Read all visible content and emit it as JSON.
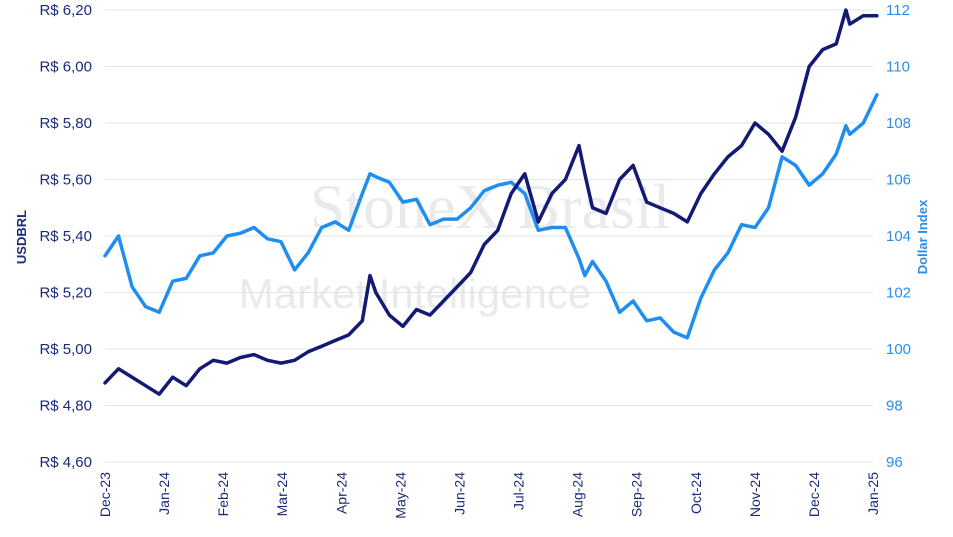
{
  "watermark": {
    "line1": "StoneX Brasil",
    "line2": "Market Intelligence"
  },
  "chart_data": {
    "type": "line",
    "title": "",
    "xlabel": "",
    "ylabel_left": "USDBRL",
    "ylabel_right": "Dollar Index",
    "y_left_range": [
      4.6,
      6.2
    ],
    "y_right_range": [
      96,
      112
    ],
    "y_left_ticks": [
      "R$ 4,60",
      "R$ 4,80",
      "R$ 5,00",
      "R$ 5,20",
      "R$ 5,40",
      "R$ 5,60",
      "R$ 5,80",
      "R$ 6,00",
      "R$ 6,20"
    ],
    "y_right_ticks": [
      "96",
      "98",
      "100",
      "102",
      "104",
      "106",
      "108",
      "110",
      "112"
    ],
    "x_ticks": [
      "Dec-23",
      "Jan-24",
      "Feb-24",
      "Mar-24",
      "Apr-24",
      "May-24",
      "Jun-24",
      "Jul-24",
      "Aug-24",
      "Sep-24",
      "Oct-24",
      "Nov-24",
      "Dec-24",
      "Jan-25"
    ],
    "grid": true,
    "legend": "none",
    "colors": {
      "usdbrl": "#121a73",
      "dxy": "#1e8ff0"
    },
    "series": [
      {
        "name": "USDBRL",
        "axis": "left",
        "x": [
          "2023-12-01",
          "2023-12-08",
          "2023-12-15",
          "2023-12-22",
          "2023-12-29",
          "2024-01-05",
          "2024-01-12",
          "2024-01-19",
          "2024-01-26",
          "2024-02-02",
          "2024-02-09",
          "2024-02-16",
          "2024-02-23",
          "2024-03-01",
          "2024-03-08",
          "2024-03-15",
          "2024-03-22",
          "2024-03-29",
          "2024-04-05",
          "2024-04-12",
          "2024-04-16",
          "2024-04-19",
          "2024-04-26",
          "2024-05-03",
          "2024-05-10",
          "2024-05-17",
          "2024-05-24",
          "2024-05-31",
          "2024-06-07",
          "2024-06-14",
          "2024-06-21",
          "2024-06-28",
          "2024-07-05",
          "2024-07-12",
          "2024-07-19",
          "2024-07-26",
          "2024-08-02",
          "2024-08-05",
          "2024-08-09",
          "2024-08-16",
          "2024-08-23",
          "2024-08-30",
          "2024-09-06",
          "2024-09-13",
          "2024-09-20",
          "2024-09-27",
          "2024-10-04",
          "2024-10-11",
          "2024-10-18",
          "2024-10-25",
          "2024-11-01",
          "2024-11-08",
          "2024-11-15",
          "2024-11-22",
          "2024-11-29",
          "2024-12-06",
          "2024-12-13",
          "2024-12-18",
          "2024-12-20",
          "2024-12-27",
          "2025-01-03"
        ],
        "values": [
          4.88,
          4.93,
          4.9,
          4.87,
          4.84,
          4.9,
          4.87,
          4.93,
          4.96,
          4.95,
          4.97,
          4.98,
          4.96,
          4.95,
          4.96,
          4.99,
          5.01,
          5.03,
          5.05,
          5.1,
          5.26,
          5.2,
          5.12,
          5.08,
          5.14,
          5.12,
          5.17,
          5.22,
          5.27,
          5.37,
          5.42,
          5.55,
          5.62,
          5.45,
          5.55,
          5.6,
          5.72,
          5.62,
          5.5,
          5.48,
          5.6,
          5.65,
          5.52,
          5.5,
          5.48,
          5.45,
          5.55,
          5.62,
          5.68,
          5.72,
          5.8,
          5.76,
          5.7,
          5.82,
          6.0,
          6.06,
          6.08,
          6.2,
          6.15,
          6.18,
          6.18
        ]
      },
      {
        "name": "Dollar Index",
        "axis": "right",
        "x": [
          "2023-12-01",
          "2023-12-08",
          "2023-12-15",
          "2023-12-22",
          "2023-12-29",
          "2024-01-05",
          "2024-01-12",
          "2024-01-19",
          "2024-01-26",
          "2024-02-02",
          "2024-02-09",
          "2024-02-16",
          "2024-02-23",
          "2024-03-01",
          "2024-03-08",
          "2024-03-15",
          "2024-03-22",
          "2024-03-29",
          "2024-04-05",
          "2024-04-12",
          "2024-04-16",
          "2024-04-19",
          "2024-04-26",
          "2024-05-03",
          "2024-05-10",
          "2024-05-17",
          "2024-05-24",
          "2024-05-31",
          "2024-06-07",
          "2024-06-14",
          "2024-06-21",
          "2024-06-28",
          "2024-07-05",
          "2024-07-12",
          "2024-07-19",
          "2024-07-26",
          "2024-08-02",
          "2024-08-05",
          "2024-08-09",
          "2024-08-16",
          "2024-08-23",
          "2024-08-30",
          "2024-09-06",
          "2024-09-13",
          "2024-09-20",
          "2024-09-27",
          "2024-10-04",
          "2024-10-11",
          "2024-10-18",
          "2024-10-25",
          "2024-11-01",
          "2024-11-08",
          "2024-11-15",
          "2024-11-22",
          "2024-11-29",
          "2024-12-06",
          "2024-12-13",
          "2024-12-18",
          "2024-12-20",
          "2024-12-27",
          "2025-01-03"
        ],
        "values": [
          103.3,
          104.0,
          102.2,
          101.5,
          101.3,
          102.4,
          102.5,
          103.3,
          103.4,
          104.0,
          104.1,
          104.3,
          103.9,
          103.8,
          102.8,
          103.4,
          104.3,
          104.5,
          104.2,
          105.5,
          106.2,
          106.1,
          105.9,
          105.2,
          105.3,
          104.4,
          104.6,
          104.6,
          105.0,
          105.6,
          105.8,
          105.9,
          105.5,
          104.2,
          104.3,
          104.3,
          103.2,
          102.6,
          103.1,
          102.4,
          101.3,
          101.7,
          101.0,
          101.1,
          100.6,
          100.4,
          101.8,
          102.8,
          103.4,
          104.4,
          104.3,
          105.0,
          106.8,
          106.5,
          105.8,
          106.2,
          106.9,
          107.9,
          107.6,
          108.0,
          109.0
        ]
      }
    ]
  }
}
